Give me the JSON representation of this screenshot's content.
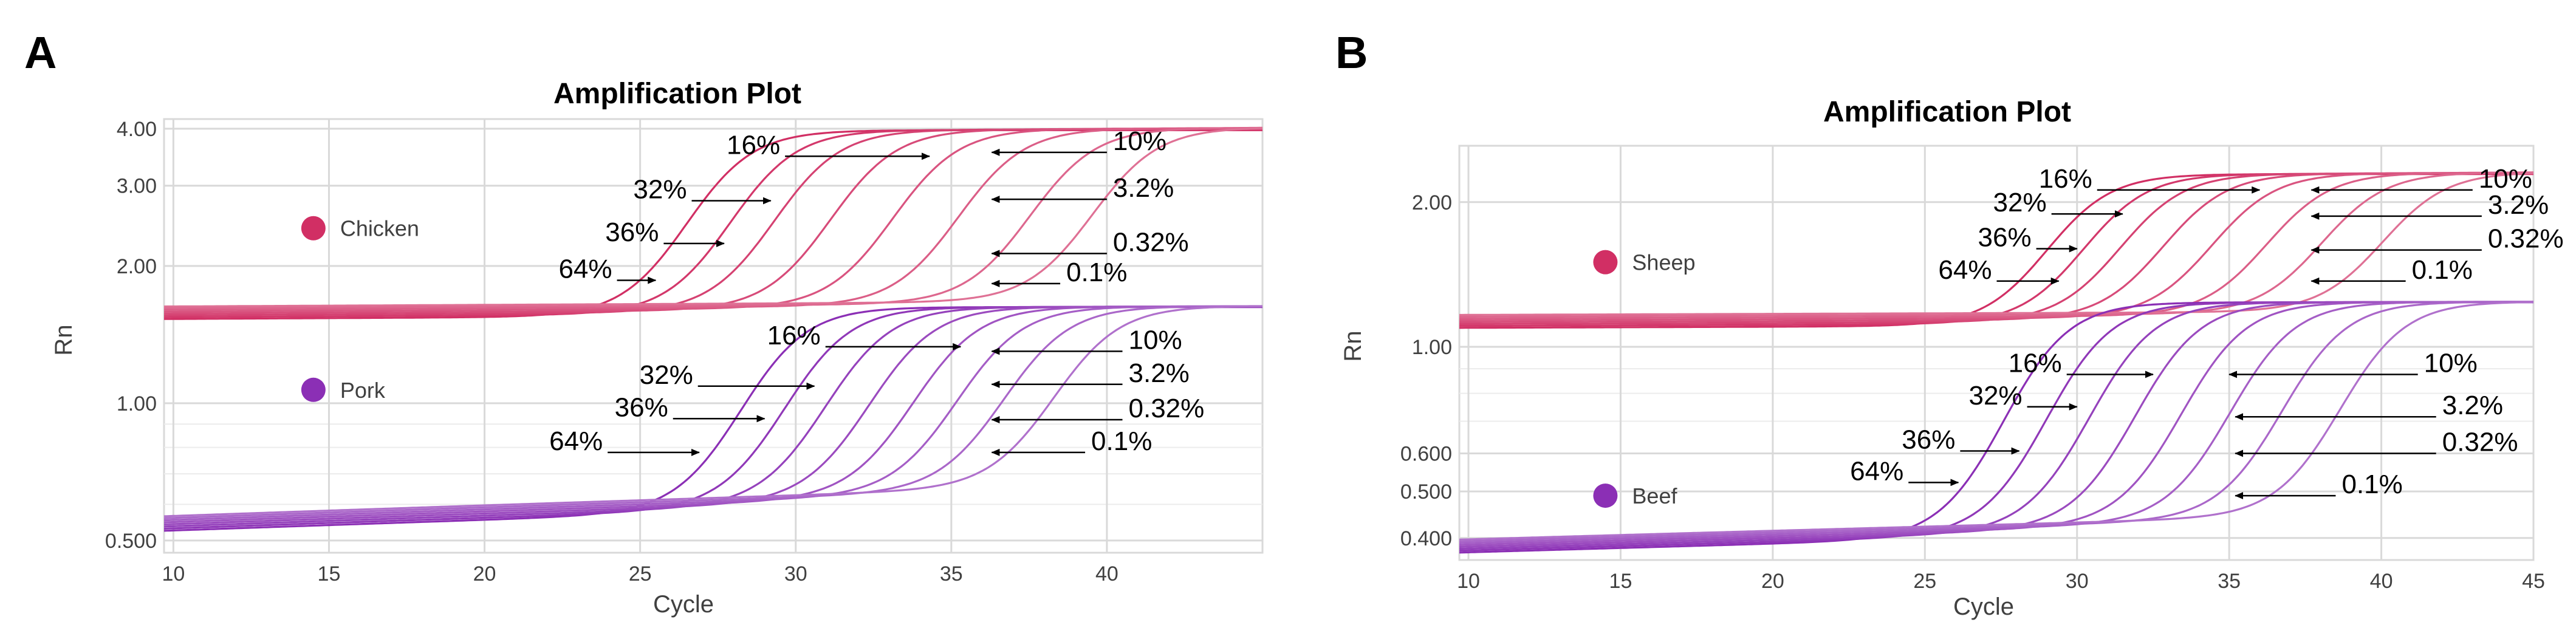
{
  "colors": {
    "upper_a": "#d12f64",
    "lower_a": "#8b2fb5",
    "upper_b": "#d12f64",
    "lower_b": "#8b2fb5",
    "grid": "#d9d9d9",
    "axis_text": "#404040"
  },
  "chart_data": [
    {
      "panel_label": "A",
      "type": "line",
      "title": "Amplification Plot",
      "xlabel": "Cycle",
      "ylabel": "Rn",
      "y_scale": "log",
      "xlim": [
        9.7,
        45
      ],
      "ylim": [
        0.47,
        4.2
      ],
      "x_ticks": [
        10,
        15,
        20,
        25,
        30,
        35,
        40
      ],
      "y_ticks": [
        {
          "value": 0.5,
          "label": "0.500"
        },
        {
          "value": 1.0,
          "label": "1.00"
        },
        {
          "value": 2.0,
          "label": "2.00"
        },
        {
          "value": 3.0,
          "label": "3.00"
        },
        {
          "value": 4.0,
          "label": "4.00"
        }
      ],
      "groups": [
        {
          "name": "Chicken",
          "color_key": "upper_a",
          "baseline": 1.58,
          "baseline_spread": 0.05,
          "baseline_slope": 0.0008,
          "plateau": 4.0,
          "curves": [
            {
              "label": "64%",
              "ct": 27.0
            },
            {
              "label": "36%",
              "ct": 28.4
            },
            {
              "label": "32%",
              "ct": 29.8
            },
            {
              "label": "16%",
              "ct": 31.6
            },
            {
              "label": "10%",
              "ct": 33.6
            },
            {
              "label": "3.2%",
              "ct": 35.7
            },
            {
              "label": "0.32%",
              "ct": 38.0
            },
            {
              "label": "0.1%",
              "ct": 40.0
            }
          ],
          "annotations": [
            {
              "label": "64%",
              "text_x": 24.1,
              "text_y": 1.86,
              "tip_x": 25.5,
              "tip_y": 1.86,
              "anchor": "end"
            },
            {
              "label": "36%",
              "text_x": 25.6,
              "text_y": 2.24,
              "tip_x": 27.7,
              "tip_y": 2.24,
              "anchor": "end"
            },
            {
              "label": "32%",
              "text_x": 26.5,
              "text_y": 2.78,
              "tip_x": 29.2,
              "tip_y": 2.78,
              "anchor": "end"
            },
            {
              "label": "16%",
              "text_x": 29.5,
              "text_y": 3.48,
              "tip_x": 34.3,
              "tip_y": 3.48,
              "anchor": "end"
            },
            {
              "label": "10%",
              "text_x": 40.0,
              "text_y": 3.55,
              "tip_x": 36.3,
              "tip_y": 3.55,
              "anchor": "start"
            },
            {
              "label": "3.2%",
              "text_x": 40.0,
              "text_y": 2.8,
              "tip_x": 36.3,
              "tip_y": 2.8,
              "anchor": "start"
            },
            {
              "label": "0.32%",
              "text_x": 40.0,
              "text_y": 2.13,
              "tip_x": 36.3,
              "tip_y": 2.13,
              "anchor": "start"
            },
            {
              "label": "0.1%",
              "text_x": 38.5,
              "text_y": 1.83,
              "tip_x": 36.3,
              "tip_y": 1.83,
              "anchor": "start"
            }
          ]
        },
        {
          "name": "Pork",
          "color_key": "lower_a",
          "baseline": 0.545,
          "baseline_spread": 0.02,
          "baseline_slope": 0.0055,
          "plateau": 1.63,
          "curves": [
            {
              "label": "64%",
              "ct": 28.8
            },
            {
              "label": "36%",
              "ct": 30.2
            },
            {
              "label": "32%",
              "ct": 31.5
            },
            {
              "label": "16%",
              "ct": 32.9
            },
            {
              "label": "10%",
              "ct": 34.3
            },
            {
              "label": "3.2%",
              "ct": 35.7
            },
            {
              "label": "0.32%",
              "ct": 37.2
            },
            {
              "label": "0.1%",
              "ct": 38.8
            }
          ],
          "annotations": [
            {
              "label": "64%",
              "text_x": 23.8,
              "text_y": 0.78,
              "tip_x": 26.9,
              "tip_y": 0.78,
              "anchor": "end"
            },
            {
              "label": "36%",
              "text_x": 25.9,
              "text_y": 0.925,
              "tip_x": 29.0,
              "tip_y": 0.925,
              "anchor": "end"
            },
            {
              "label": "32%",
              "text_x": 26.7,
              "text_y": 1.09,
              "tip_x": 30.6,
              "tip_y": 1.09,
              "anchor": "end"
            },
            {
              "label": "16%",
              "text_x": 30.8,
              "text_y": 1.33,
              "tip_x": 35.3,
              "tip_y": 1.33,
              "anchor": "end"
            },
            {
              "label": "10%",
              "text_x": 40.5,
              "text_y": 1.3,
              "tip_x": 36.3,
              "tip_y": 1.3,
              "anchor": "start"
            },
            {
              "label": "3.2%",
              "text_x": 40.5,
              "text_y": 1.1,
              "tip_x": 36.3,
              "tip_y": 1.1,
              "anchor": "start"
            },
            {
              "label": "0.32%",
              "text_x": 40.5,
              "text_y": 0.92,
              "tip_x": 36.3,
              "tip_y": 0.92,
              "anchor": "start"
            },
            {
              "label": "0.1%",
              "text_x": 39.3,
              "text_y": 0.78,
              "tip_x": 36.3,
              "tip_y": 0.78,
              "anchor": "start"
            }
          ]
        }
      ],
      "legend": [
        {
          "label": "Chicken",
          "color_key": "upper_a",
          "x": 14.5,
          "y": 2.42
        },
        {
          "label": "Pork",
          "color_key": "lower_a",
          "x": 14.5,
          "y": 1.07
        }
      ]
    },
    {
      "panel_label": "B",
      "type": "line",
      "title": "Amplification Plot",
      "xlabel": "Cycle",
      "ylabel": "Rn",
      "y_scale": "log",
      "xlim": [
        9.7,
        45
      ],
      "ylim": [
        0.36,
        2.62
      ],
      "x_ticks": [
        10,
        15,
        20,
        25,
        30,
        35,
        40,
        45
      ],
      "y_ticks": [
        {
          "value": 0.4,
          "label": "0.400"
        },
        {
          "value": 0.5,
          "label": "0.500"
        },
        {
          "value": 0.6,
          "label": "0.600"
        },
        {
          "value": 1.0,
          "label": "1.00"
        },
        {
          "value": 2.0,
          "label": "2.00"
        }
      ],
      "groups": [
        {
          "name": "Sheep",
          "color_key": "upper_b",
          "baseline": 1.13,
          "baseline_spread": 0.035,
          "baseline_slope": 0.0005,
          "plateau": 2.3,
          "curves": [
            {
              "label": "64%",
              "ct": 29.4
            },
            {
              "label": "36%",
              "ct": 30.6
            },
            {
              "label": "32%",
              "ct": 31.8
            },
            {
              "label": "16%",
              "ct": 33.2
            },
            {
              "label": "10%",
              "ct": 34.8
            },
            {
              "label": "3.2%",
              "ct": 36.6
            },
            {
              "label": "0.32%",
              "ct": 38.4
            },
            {
              "label": "0.1%",
              "ct": 40.4
            }
          ],
          "annotations": [
            {
              "label": "64%",
              "text_x": 27.2,
              "text_y": 1.37,
              "tip_x": 29.4,
              "tip_y": 1.37,
              "anchor": "end"
            },
            {
              "label": "36%",
              "text_x": 28.5,
              "text_y": 1.6,
              "tip_x": 30.0,
              "tip_y": 1.6,
              "anchor": "end"
            },
            {
              "label": "32%",
              "text_x": 29.0,
              "text_y": 1.89,
              "tip_x": 31.5,
              "tip_y": 1.89,
              "anchor": "end"
            },
            {
              "label": "16%",
              "text_x": 30.5,
              "text_y": 2.12,
              "tip_x": 36.0,
              "tip_y": 2.12,
              "anchor": "end"
            },
            {
              "label": "10%",
              "text_x": 43.0,
              "text_y": 2.12,
              "tip_x": 37.7,
              "tip_y": 2.12,
              "anchor": "start"
            },
            {
              "label": "3.2%",
              "text_x": 43.3,
              "text_y": 1.87,
              "tip_x": 37.7,
              "tip_y": 1.87,
              "anchor": "start"
            },
            {
              "label": "0.32%",
              "text_x": 43.3,
              "text_y": 1.59,
              "tip_x": 37.7,
              "tip_y": 1.59,
              "anchor": "start"
            },
            {
              "label": "0.1%",
              "text_x": 40.8,
              "text_y": 1.37,
              "tip_x": 37.7,
              "tip_y": 1.37,
              "anchor": "start"
            }
          ]
        },
        {
          "name": "Beef",
          "color_key": "lower_b",
          "baseline": 0.385,
          "baseline_spread": 0.012,
          "baseline_slope": 0.0042,
          "plateau": 1.24,
          "curves": [
            {
              "label": "64%",
              "ct": 28.2
            },
            {
              "label": "36%",
              "ct": 29.6
            },
            {
              "label": "32%",
              "ct": 31.0
            },
            {
              "label": "16%",
              "ct": 32.5
            },
            {
              "label": "10%",
              "ct": 34.0
            },
            {
              "label": "3.2%",
              "ct": 35.6
            },
            {
              "label": "0.32%",
              "ct": 37.3
            },
            {
              "label": "0.1%",
              "ct": 39.2
            }
          ],
          "annotations": [
            {
              "label": "64%",
              "text_x": 24.3,
              "text_y": 0.522,
              "tip_x": 26.1,
              "tip_y": 0.522,
              "anchor": "end"
            },
            {
              "label": "36%",
              "text_x": 26.0,
              "text_y": 0.607,
              "tip_x": 28.1,
              "tip_y": 0.607,
              "anchor": "end"
            },
            {
              "label": "32%",
              "text_x": 28.2,
              "text_y": 0.75,
              "tip_x": 30.0,
              "tip_y": 0.75,
              "anchor": "end"
            },
            {
              "label": "16%",
              "text_x": 29.5,
              "text_y": 0.876,
              "tip_x": 32.5,
              "tip_y": 0.876,
              "anchor": "end"
            },
            {
              "label": "10%",
              "text_x": 41.2,
              "text_y": 0.876,
              "tip_x": 35.0,
              "tip_y": 0.876,
              "anchor": "start"
            },
            {
              "label": "3.2%",
              "text_x": 41.8,
              "text_y": 0.715,
              "tip_x": 35.2,
              "tip_y": 0.715,
              "anchor": "start"
            },
            {
              "label": "0.32%",
              "text_x": 41.8,
              "text_y": 0.6,
              "tip_x": 35.2,
              "tip_y": 0.6,
              "anchor": "start"
            },
            {
              "label": "0.1%",
              "text_x": 38.5,
              "text_y": 0.49,
              "tip_x": 35.2,
              "tip_y": 0.49,
              "anchor": "start"
            }
          ]
        }
      ],
      "legend": [
        {
          "label": "Sheep",
          "color_key": "upper_b",
          "x": 14.5,
          "y": 1.5
        },
        {
          "label": "Beef",
          "color_key": "lower_b",
          "x": 14.5,
          "y": 0.49
        }
      ]
    }
  ]
}
